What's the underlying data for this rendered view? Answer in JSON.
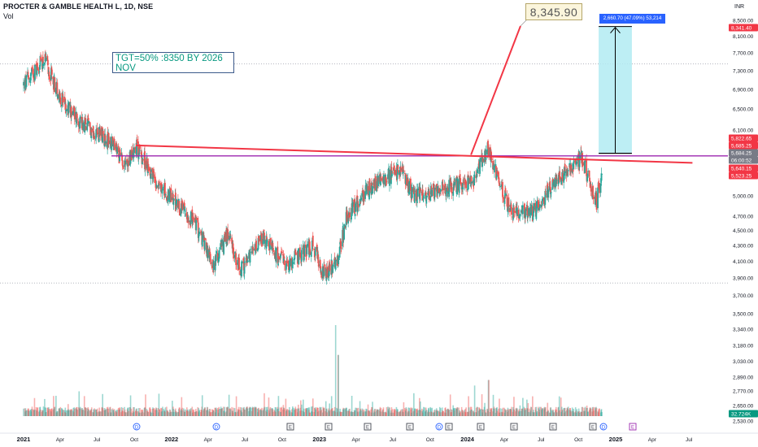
{
  "header": {
    "symbol_line": "PROCTER & GAMBLE HEALTH L, 1D, NSE",
    "volume_label": "Vol"
  },
  "annotations": {
    "target_note": "TGT=50% :8350 BY 2026 NOV",
    "price_callout": "8,345.90",
    "measure_label": "2,660.70 (47.09%) 53,214"
  },
  "price_axis": {
    "currency": "INR",
    "ticks": [
      "8,500.00",
      "8,100.00",
      "7,700.00",
      "7,300.00",
      "6,900.00",
      "6,500.00",
      "6,100.00",
      "5,000.00",
      "4,700.00",
      "4,500.00",
      "4,300.00",
      "4,100.00",
      "3,900.00",
      "3,700.00",
      "3,500.00",
      "3,340.00",
      "3,180.00",
      "3,030.00",
      "2,890.00",
      "2,770.00",
      "2,650.00",
      "2,530.00"
    ],
    "badges": [
      {
        "label": "8,341.40",
        "color": "#f23645"
      },
      {
        "label": "5,822.65",
        "color": "#f23645"
      },
      {
        "label": "5,685.25",
        "color": "#f23645"
      },
      {
        "label": "5,684.25",
        "color": "#787b86"
      },
      {
        "label": "06:00:52",
        "color": "#787b86"
      },
      {
        "label": "5,640.15",
        "color": "#f23645"
      },
      {
        "label": "5,523.25",
        "color": "#f23645"
      },
      {
        "label": "32.724K",
        "color": "#089981"
      }
    ]
  },
  "time_axis": {
    "ticks": [
      "2021",
      "Apr",
      "Jul",
      "Oct",
      "2022",
      "Apr",
      "Jul",
      "Oct",
      "2023",
      "Apr",
      "Jul",
      "Oct",
      "2024",
      "Apr",
      "Jul",
      "Oct",
      "2025",
      "Apr",
      "Jul"
    ],
    "bold": [
      "2021",
      "2022",
      "2023",
      "2024",
      "2025"
    ]
  },
  "event_markers": [
    {
      "symbol": "D",
      "type": "dividend",
      "date": "2021-10"
    },
    {
      "symbol": "D",
      "type": "dividend",
      "date": "2022-08"
    },
    {
      "symbol": "E",
      "type": "earnings",
      "date": "2022-11"
    },
    {
      "symbol": "E",
      "type": "earnings",
      "date": "2023-02"
    },
    {
      "symbol": "E",
      "type": "earnings",
      "date": "2023-05"
    },
    {
      "symbol": "E",
      "type": "earnings",
      "date": "2023-08"
    },
    {
      "symbol": "D",
      "type": "dividend",
      "date": "2023-09"
    },
    {
      "symbol": "E",
      "type": "earnings",
      "date": "2023-11"
    },
    {
      "symbol": "E",
      "type": "earnings",
      "date": "2024-02"
    },
    {
      "symbol": "E",
      "type": "earnings",
      "date": "2024-05"
    },
    {
      "symbol": "E",
      "type": "earnings",
      "date": "2024-08"
    },
    {
      "symbol": "E",
      "type": "earnings",
      "date": "2024-11"
    },
    {
      "symbol": "D",
      "type": "dividend",
      "date": "2024-11"
    },
    {
      "symbol": "E",
      "type": "earnings-upcoming",
      "date": "2025-02"
    }
  ],
  "colors": {
    "up": "#26a69a",
    "down": "#ef5350",
    "trendline": "#f23645",
    "horizontal_line": "#9c27b0",
    "measure_fill": "#b2ebf2",
    "measure_label_bg": "#2962ff",
    "note_text": "#089981"
  },
  "chart_data": {
    "type": "candlestick",
    "symbol": "PROCTER & GAMBLE HEALTH L",
    "interval": "1D",
    "exchange": "NSE",
    "y_scale": "log",
    "ylim": [
      2530,
      8600
    ],
    "xlim": [
      "2021-01-01",
      "2025-08-15"
    ],
    "price_path": [
      {
        "date": "2021-01-01",
        "close": 7000
      },
      {
        "date": "2021-02-20",
        "close": 7550
      },
      {
        "date": "2021-04-10",
        "close": 6600
      },
      {
        "date": "2021-06-01",
        "close": 6200
      },
      {
        "date": "2021-08-01",
        "close": 5900
      },
      {
        "date": "2021-09-10",
        "close": 5500
      },
      {
        "date": "2021-10-05",
        "close": 5820
      },
      {
        "date": "2021-12-01",
        "close": 5150
      },
      {
        "date": "2022-03-01",
        "close": 4600
      },
      {
        "date": "2022-04-15",
        "close": 4050
      },
      {
        "date": "2022-05-20",
        "close": 4450
      },
      {
        "date": "2022-06-20",
        "close": 3980
      },
      {
        "date": "2022-08-15",
        "close": 4400
      },
      {
        "date": "2022-10-10",
        "close": 4050
      },
      {
        "date": "2022-12-15",
        "close": 4300
      },
      {
        "date": "2023-01-10",
        "close": 3950
      },
      {
        "date": "2023-02-15",
        "close": 4100
      },
      {
        "date": "2023-03-10",
        "close": 4700
      },
      {
        "date": "2023-05-15",
        "close": 5200
      },
      {
        "date": "2023-07-20",
        "close": 5400
      },
      {
        "date": "2023-08-20",
        "close": 5000
      },
      {
        "date": "2023-11-01",
        "close": 5100
      },
      {
        "date": "2024-01-15",
        "close": 5250
      },
      {
        "date": "2024-02-20",
        "close": 5750
      },
      {
        "date": "2024-04-15",
        "close": 4800
      },
      {
        "date": "2024-06-10",
        "close": 4750
      },
      {
        "date": "2024-08-15",
        "close": 5300
      },
      {
        "date": "2024-10-10",
        "close": 5600
      },
      {
        "date": "2024-11-15",
        "close": 4900
      },
      {
        "date": "2024-11-28",
        "close": 5400
      }
    ],
    "volume_spikes": [
      {
        "date": "2023-02-10",
        "volume": 32724
      },
      {
        "date": "2023-02-16",
        "volume": 22000
      },
      {
        "date": "2024-01-20",
        "volume": 11000
      },
      {
        "date": "2024-02-22",
        "volume": 13000
      }
    ],
    "lines": [
      {
        "kind": "trendline",
        "points": [
          [
            "2021-10-05",
            5822.65
          ],
          [
            "2025-03-01",
            5523.25
          ]
        ]
      },
      {
        "kind": "horizontal",
        "price": 5640.15
      },
      {
        "kind": "projection",
        "points": [
          [
            "2024-01-10",
            5660
          ],
          [
            "2024-09-01",
            8345.9
          ]
        ]
      },
      {
        "kind": "measure",
        "points": [
          [
            "2024-11-20",
            5685.25
          ],
          [
            "2025-02-10",
            8341.4
          ]
        ]
      }
    ],
    "horizontal_levels": [
      7450,
      3840
    ],
    "measure": {
      "change": 2660.7,
      "percent": 47.09,
      "volume": 53214
    },
    "target": 8350
  }
}
